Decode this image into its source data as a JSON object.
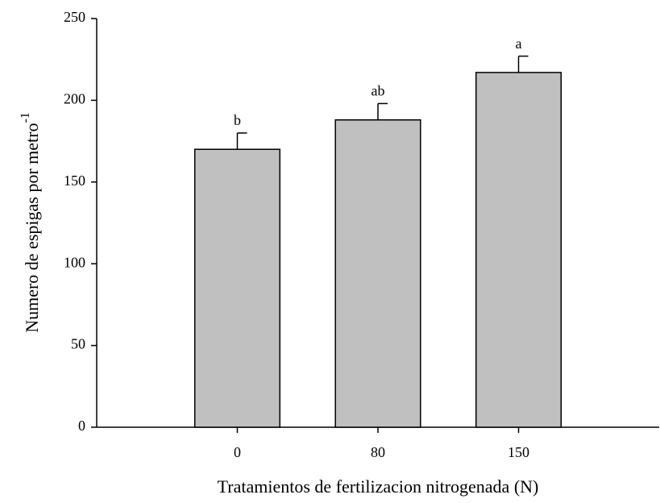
{
  "chart_data": {
    "type": "bar",
    "xlabel": "Tratamientos de fertilizacion nitrogenada (N)",
    "ylabel": "Numero de espigas por metro",
    "ylabel_superscript": "-1",
    "categories": [
      "0",
      "80",
      "150"
    ],
    "values": [
      170,
      188,
      217
    ],
    "errors": [
      10,
      10,
      10
    ],
    "annotations": [
      "b",
      "ab",
      "a"
    ],
    "color": "#c0c0c0",
    "ylim": [
      0,
      250
    ],
    "yticks": [
      0,
      50,
      100,
      150,
      200,
      250
    ]
  }
}
